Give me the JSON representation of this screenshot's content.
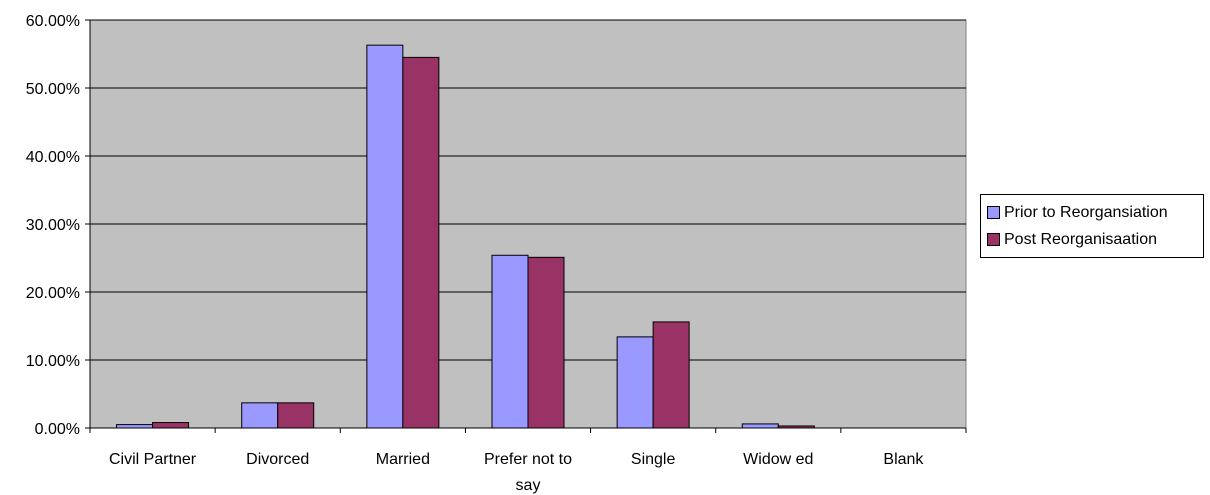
{
  "chart_data": {
    "type": "bar",
    "title": "",
    "xlabel": "",
    "ylabel": "",
    "categories": [
      "Civil Partner",
      "Divorced",
      "Married",
      "Prefer not to say",
      "Single",
      "Widow ed",
      "Blank"
    ],
    "category_lines": [
      [
        "Civil Partner"
      ],
      [
        "Divorced"
      ],
      [
        "Married"
      ],
      [
        "Prefer not to",
        "say"
      ],
      [
        "Single"
      ],
      [
        "Widow ed"
      ],
      [
        "Blank"
      ]
    ],
    "series": [
      {
        "name": "Prior to Reorgansiation",
        "color": "#9999ff",
        "values": [
          0.5,
          3.7,
          56.3,
          25.4,
          13.4,
          0.6,
          0.0
        ]
      },
      {
        "name": "Post Reorganisaation",
        "color": "#993366",
        "values": [
          0.8,
          3.7,
          54.5,
          25.1,
          15.6,
          0.3,
          0.0
        ]
      }
    ],
    "ylim": [
      0,
      60
    ],
    "yticks": [
      0,
      10,
      20,
      30,
      40,
      50,
      60
    ],
    "ytick_labels": [
      "0.00%",
      "10.00%",
      "20.00%",
      "30.00%",
      "40.00%",
      "50.00%",
      "60.00%"
    ],
    "grid": true,
    "plot_background": "#c0c0c0",
    "legend_position": "right"
  }
}
